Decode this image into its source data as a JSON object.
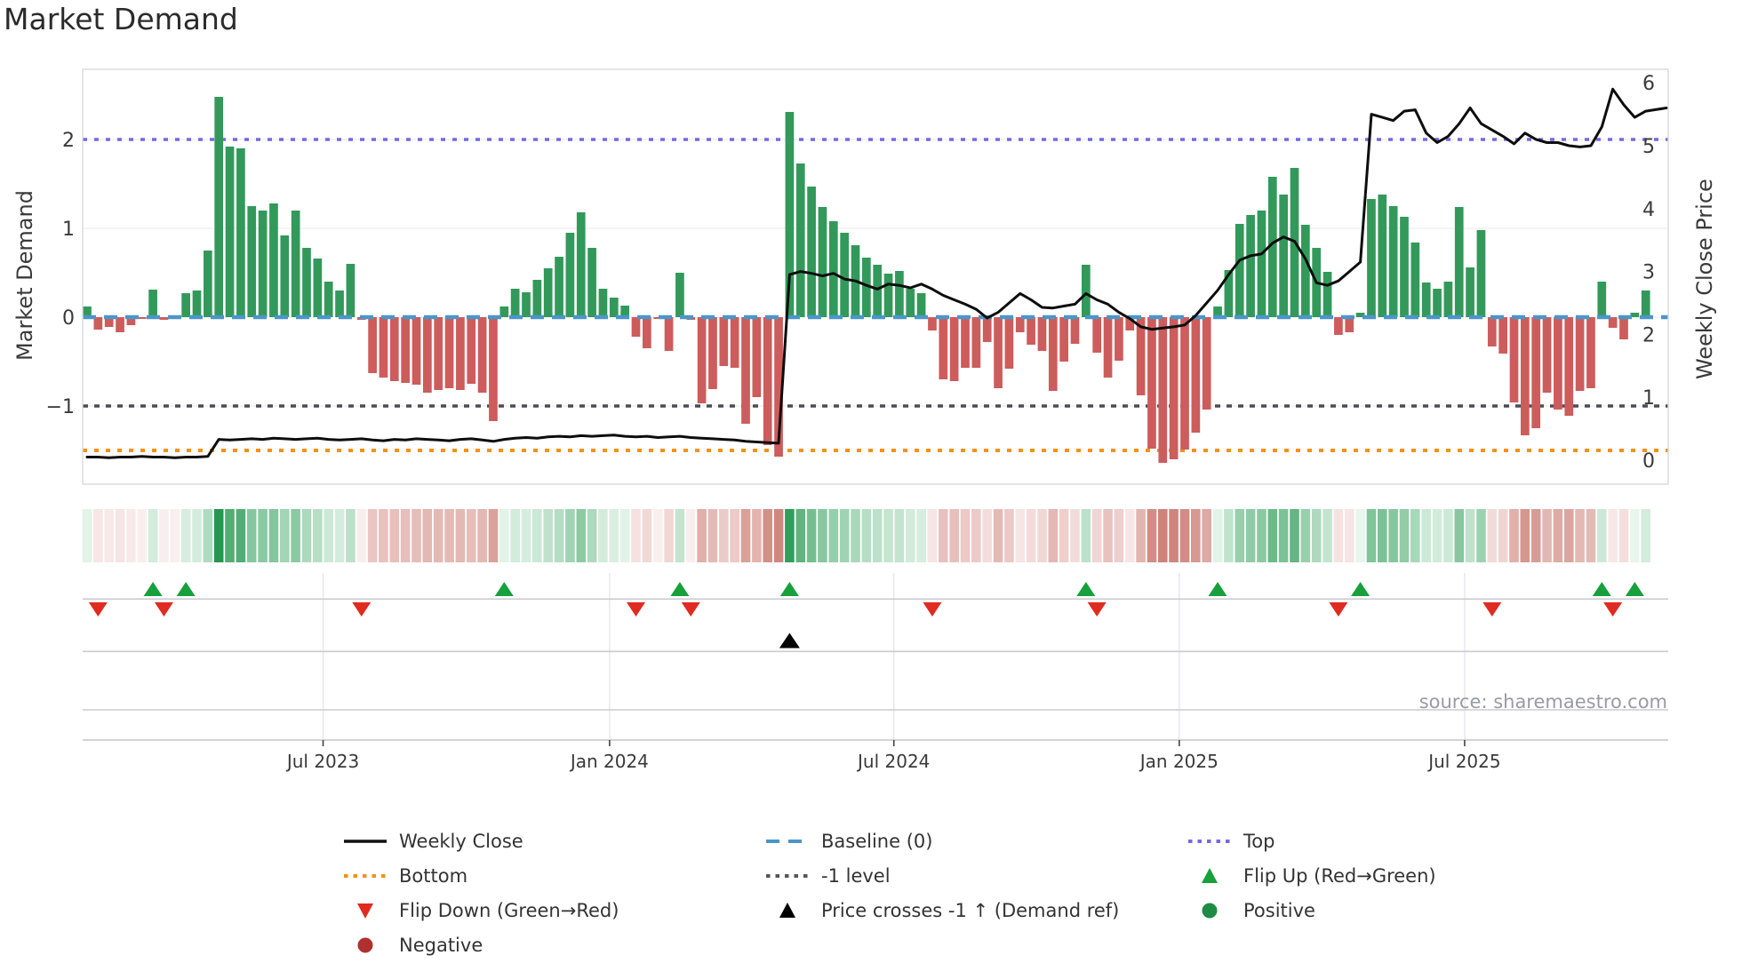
{
  "chart_data": {
    "type": "bar+line",
    "title": "Market Demand",
    "ylabel_left": "Market Demand",
    "ylabel_right": "Weekly Close Price",
    "source": "source: sharemaestro.com",
    "x_tick_labels": [
      "Jul 2023",
      "Jan 2024",
      "Jul 2024",
      "Jan 2025",
      "Jul 2025"
    ],
    "x_tick_week_index": [
      21.5,
      47.6,
      73.5,
      99.5,
      125.5
    ],
    "left_axis": {
      "ticks": [
        2,
        1,
        0,
        -1
      ],
      "tick_labels": [
        "2",
        "1",
        "0",
        "−1"
      ],
      "ylim": [
        -1.88,
        2.79
      ]
    },
    "right_axis": {
      "ticks": [
        6,
        5,
        4,
        3,
        2,
        1,
        0
      ],
      "ylim": [
        -0.33,
        6.22
      ]
    },
    "reference_lines": {
      "top": 2,
      "baseline": 0,
      "minus1": -1,
      "bottom": -1.5
    },
    "weeks": 143,
    "demand": [
      0.12,
      -0.14,
      -0.11,
      -0.17,
      -0.09,
      -0.02,
      0.31,
      -0.03,
      -0.02,
      0.27,
      0.3,
      0.75,
      2.48,
      1.92,
      1.9,
      1.25,
      1.2,
      1.28,
      0.92,
      1.2,
      0.78,
      0.66,
      0.4,
      0.3,
      0.6,
      -0.03,
      -0.63,
      -0.68,
      -0.72,
      -0.74,
      -0.76,
      -0.85,
      -0.82,
      -0.8,
      -0.82,
      -0.75,
      -0.85,
      -1.17,
      0.12,
      0.32,
      0.28,
      0.42,
      0.55,
      0.68,
      0.95,
      1.18,
      0.78,
      0.32,
      0.22,
      0.13,
      -0.22,
      -0.35,
      -0.02,
      -0.38,
      0.5,
      -0.03,
      -0.97,
      -0.81,
      -0.55,
      -0.57,
      -1.2,
      -0.9,
      -1.44,
      -1.57,
      2.31,
      1.73,
      1.47,
      1.24,
      1.08,
      0.95,
      0.81,
      0.67,
      0.59,
      0.49,
      0.52,
      0.32,
      0.27,
      -0.15,
      -0.7,
      -0.72,
      -0.57,
      -0.57,
      -0.28,
      -0.8,
      -0.58,
      -0.17,
      -0.31,
      -0.38,
      -0.83,
      -0.5,
      -0.3,
      0.59,
      -0.4,
      -0.68,
      -0.49,
      -0.15,
      -0.88,
      -1.48,
      -1.64,
      -1.6,
      -1.49,
      -1.3,
      -1.04,
      0.12,
      0.53,
      1.05,
      1.15,
      1.2,
      1.58,
      1.38,
      1.68,
      1.04,
      0.78,
      0.51,
      -0.2,
      -0.17,
      0.05,
      1.33,
      1.38,
      1.25,
      1.13,
      0.84,
      0.39,
      0.32,
      0.4,
      1.24,
      0.56,
      0.98,
      -0.33,
      -0.41,
      -0.96,
      -1.33,
      -1.25,
      -0.85,
      -1.04,
      -1.11,
      -0.83,
      -0.8,
      0.4,
      -0.12,
      -0.25,
      0.05,
      0.3
    ],
    "weekly_close": [
      0.05,
      0.05,
      0.04,
      0.05,
      0.05,
      0.06,
      0.05,
      0.05,
      0.04,
      0.05,
      0.05,
      0.06,
      0.33,
      0.32,
      0.33,
      0.34,
      0.33,
      0.35,
      0.34,
      0.33,
      0.34,
      0.35,
      0.33,
      0.32,
      0.33,
      0.34,
      0.32,
      0.31,
      0.33,
      0.32,
      0.34,
      0.33,
      0.32,
      0.31,
      0.33,
      0.34,
      0.32,
      0.3,
      0.33,
      0.35,
      0.36,
      0.35,
      0.37,
      0.38,
      0.37,
      0.39,
      0.38,
      0.39,
      0.4,
      0.38,
      0.37,
      0.38,
      0.36,
      0.37,
      0.38,
      0.36,
      0.35,
      0.34,
      0.33,
      0.32,
      0.3,
      0.29,
      0.28,
      0.27,
      2.95,
      3.0,
      2.97,
      2.93,
      2.97,
      2.88,
      2.85,
      2.78,
      2.72,
      2.8,
      2.78,
      2.74,
      2.8,
      2.72,
      2.62,
      2.55,
      2.48,
      2.4,
      2.26,
      2.35,
      2.5,
      2.65,
      2.55,
      2.43,
      2.42,
      2.45,
      2.48,
      2.65,
      2.55,
      2.48,
      2.35,
      2.25,
      2.12,
      2.08,
      2.1,
      2.12,
      2.15,
      2.3,
      2.5,
      2.7,
      2.95,
      3.18,
      3.25,
      3.28,
      3.45,
      3.55,
      3.48,
      3.2,
      2.82,
      2.78,
      2.85,
      3.0,
      3.15,
      5.5,
      5.45,
      5.4,
      5.55,
      5.57,
      5.2,
      5.05,
      5.15,
      5.35,
      5.6,
      5.35,
      5.25,
      5.15,
      5.03,
      5.2,
      5.1,
      5.05,
      5.05,
      5.0,
      4.98,
      5.0,
      5.3,
      5.9,
      5.65,
      5.45,
      5.55
    ],
    "signals": {
      "flip_up_weeks": [
        6,
        9,
        38,
        54,
        64,
        91,
        103,
        116,
        138,
        141
      ],
      "flip_down_weeks": [
        1,
        7,
        25,
        50,
        55,
        77,
        92,
        114,
        128,
        139
      ],
      "price_cross_weeks": [
        64
      ]
    }
  },
  "legend": {
    "items": [
      {
        "label": "Weekly Close",
        "marker": "line",
        "color": "#111111"
      },
      {
        "label": "Baseline (0)",
        "marker": "dashes",
        "color": "#4a96c8"
      },
      {
        "label": "Top",
        "marker": "dots",
        "color": "#7468e6"
      },
      {
        "label": "Bottom",
        "marker": "dots",
        "color": "#f39118"
      },
      {
        "label": "-1 level",
        "marker": "dots",
        "color": "#55555f"
      },
      {
        "label": "Flip Up (Red→Green)",
        "marker": "triangle-up",
        "color": "#17a03c"
      },
      {
        "label": "Flip Down (Green→Red)",
        "marker": "triangle-down",
        "color": "#e02b20"
      },
      {
        "label": "Price crosses -1 ↑ (Demand ref)",
        "marker": "triangle-up",
        "color": "#000000"
      },
      {
        "label": "Positive",
        "marker": "circle",
        "color": "#1e8c45"
      },
      {
        "label": "Negative",
        "marker": "circle",
        "color": "#b03030"
      }
    ]
  },
  "colors": {
    "bar_positive": "#33995b",
    "bar_negative": "#cd5c5c",
    "price_line": "#0d0d0d",
    "baseline": "#4a96c8",
    "top_line": "#7468e6",
    "minus1_line": "#4b4b57",
    "bottom_line": "#f39118",
    "flip_up": "#17a03c",
    "flip_down": "#e02b20",
    "price_cross": "#000000",
    "grid": "#ededf3",
    "panel_border": "#d8d8e2",
    "tick_text": "#3a3a3a",
    "heat_green_max": "#22964f",
    "heat_red_max": "#c46a60"
  }
}
